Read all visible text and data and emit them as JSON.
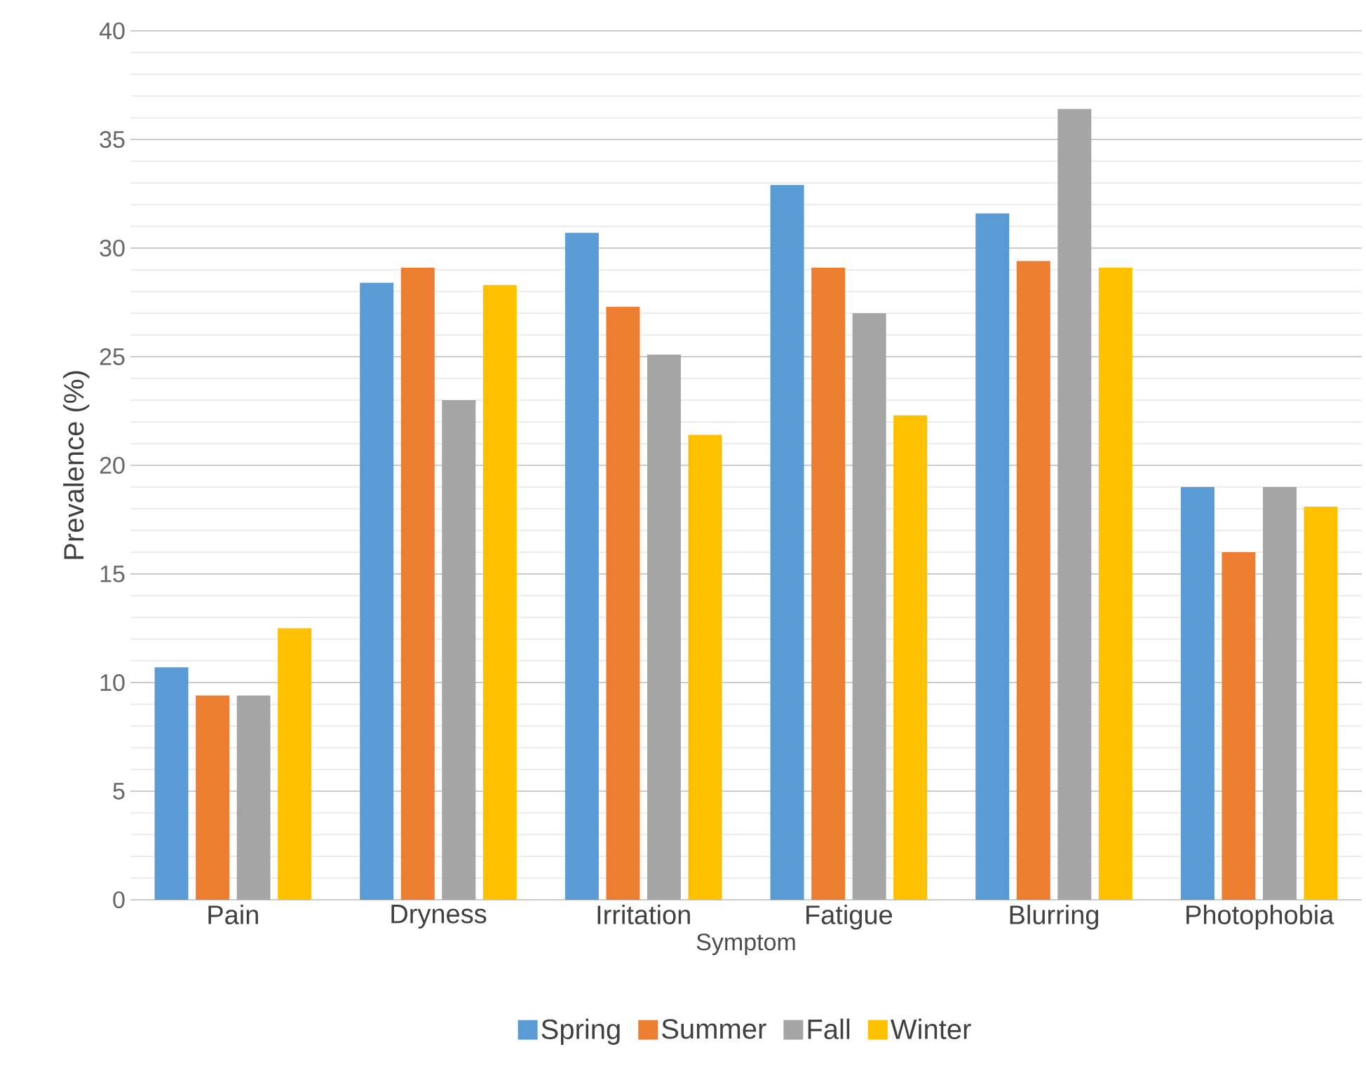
{
  "chart_data": {
    "type": "bar",
    "xlabel": "Symptom",
    "ylabel": "Prevalence (%)",
    "categories": [
      "Pain",
      "Dryness",
      "Irritation",
      "Fatigue",
      "Blurring",
      "Photophobia"
    ],
    "series": [
      {
        "name": "Spring",
        "color": "#5b9bd5",
        "values": [
          10.7,
          28.4,
          30.7,
          32.9,
          31.6,
          19.0
        ]
      },
      {
        "name": "Summer",
        "color": "#ed7d31",
        "values": [
          9.4,
          29.1,
          27.3,
          29.1,
          29.4,
          16.0
        ]
      },
      {
        "name": "Fall",
        "color": "#a5a5a5",
        "values": [
          9.4,
          23.0,
          25.1,
          27.0,
          36.4,
          19.0
        ]
      },
      {
        "name": "Winter",
        "color": "#ffc000",
        "values": [
          12.5,
          28.3,
          21.4,
          22.3,
          29.1,
          18.1
        ]
      }
    ],
    "ylim": [
      0,
      40
    ],
    "yticks": [
      0,
      5,
      10,
      15,
      20,
      25,
      30,
      35,
      40
    ],
    "grid": "y",
    "legend": "bottom"
  }
}
